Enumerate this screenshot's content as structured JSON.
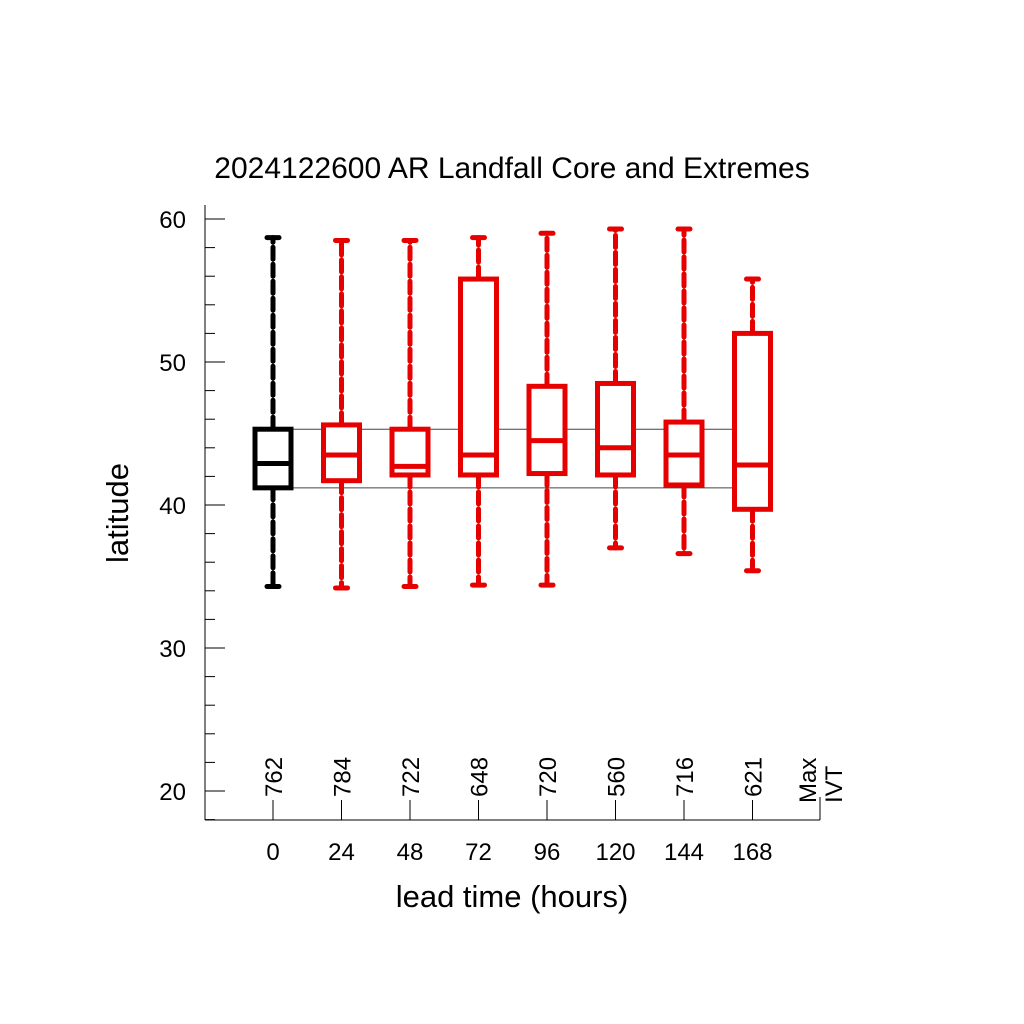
{
  "chart_data": {
    "type": "box",
    "title": "2024122600 AR Landfall Core and Extremes",
    "xlabel": "lead time (hours)",
    "ylabel": "latitude",
    "ylim": [
      18,
      61
    ],
    "yticks": [
      20,
      30,
      40,
      50,
      60
    ],
    "yminor_step": 2,
    "categories": [
      "0",
      "24",
      "48",
      "72",
      "96",
      "120",
      "144",
      "168"
    ],
    "extra_label": "Max\nIVT",
    "counts": [
      "762",
      "784",
      "722",
      "648",
      "720",
      "560",
      "716",
      "621"
    ],
    "boxes": [
      {
        "lead": 0,
        "min": 34.3,
        "q1": 41.2,
        "median": 42.9,
        "q3": 45.3,
        "max": 58.7,
        "color": "#000000"
      },
      {
        "lead": 24,
        "min": 34.2,
        "q1": 41.7,
        "median": 43.5,
        "q3": 45.6,
        "max": 58.5,
        "color": "#e60000"
      },
      {
        "lead": 48,
        "min": 34.3,
        "q1": 42.1,
        "median": 42.7,
        "q3": 45.3,
        "max": 58.5,
        "color": "#e60000"
      },
      {
        "lead": 72,
        "min": 34.4,
        "q1": 42.1,
        "median": 43.5,
        "q3": 55.8,
        "max": 58.7,
        "color": "#e60000"
      },
      {
        "lead": 96,
        "min": 34.4,
        "q1": 42.2,
        "median": 44.5,
        "q3": 48.3,
        "max": 59.0,
        "color": "#e60000"
      },
      {
        "lead": 120,
        "min": 37.0,
        "q1": 42.1,
        "median": 44.0,
        "q3": 48.5,
        "max": 59.3,
        "color": "#e60000"
      },
      {
        "lead": 144,
        "min": 36.6,
        "q1": 41.4,
        "median": 43.5,
        "q3": 45.8,
        "max": 59.3,
        "color": "#e60000"
      },
      {
        "lead": 168,
        "min": 35.4,
        "q1": 39.7,
        "median": 42.8,
        "q3": 52.0,
        "max": 55.8,
        "color": "#e60000"
      }
    ],
    "reference_lines": [
      41.2,
      45.3
    ],
    "grid": false,
    "legend": "none"
  }
}
